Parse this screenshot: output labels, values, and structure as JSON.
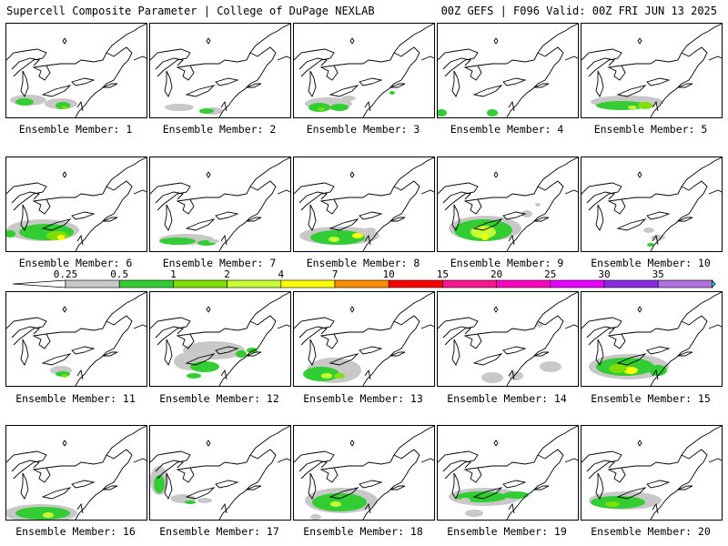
{
  "header": {
    "left_title": "Supercell Composite Parameter | College of DuPage NEXLAB",
    "right_title": "00Z GEFS | F096 Valid: 00Z FRI JUN 13 2025"
  },
  "colorbar": {
    "labels": [
      "0.25",
      "0.5",
      "1",
      "2",
      "4",
      "7",
      "10",
      "15",
      "20",
      "25",
      "30",
      "35"
    ],
    "colors": [
      "#c8c8c8",
      "#32cd32",
      "#7fe000",
      "#c8ff32",
      "#ffff00",
      "#ff8c00",
      "#ff0000",
      "#ff1493",
      "#ff00c0",
      "#e600ff",
      "#8a2be2",
      "#b070e0",
      "#00ffff"
    ]
  },
  "panels": [
    {
      "caption": "Ensemble Member: 1"
    },
    {
      "caption": "Ensemble Member: 2"
    },
    {
      "caption": "Ensemble Member: 3"
    },
    {
      "caption": "Ensemble Member: 4"
    },
    {
      "caption": "Ensemble Member: 5"
    },
    {
      "caption": "Ensemble Member: 6"
    },
    {
      "caption": "Ensemble Member: 7"
    },
    {
      "caption": "Ensemble Member: 8"
    },
    {
      "caption": "Ensemble Member: 9"
    },
    {
      "caption": "Ensemble Member: 10"
    },
    {
      "caption": "Ensemble Member: 11"
    },
    {
      "caption": "Ensemble Member: 12"
    },
    {
      "caption": "Ensemble Member: 13"
    },
    {
      "caption": "Ensemble Member: 14"
    },
    {
      "caption": "Ensemble Member: 15"
    },
    {
      "caption": "Ensemble Member: 16"
    },
    {
      "caption": "Ensemble Member: 17"
    },
    {
      "caption": "Ensemble Member: 18"
    },
    {
      "caption": "Ensemble Member: 19"
    },
    {
      "caption": "Ensemble Member: 20"
    }
  ]
}
